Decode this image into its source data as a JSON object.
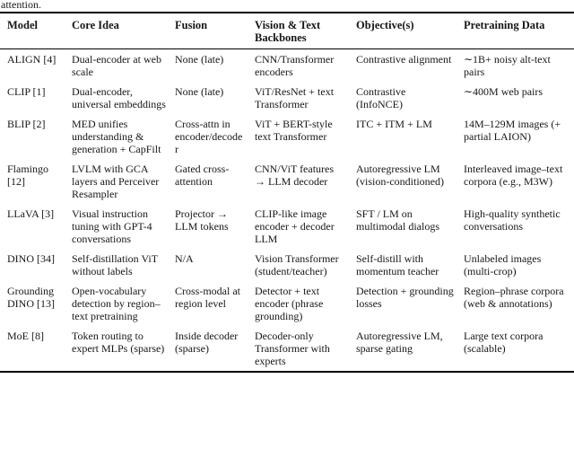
{
  "caption_fragment": "attention.",
  "table": {
    "headers": [
      "Model",
      "Core Idea",
      "Fusion",
      "Vision & Text Backbones",
      "Objective(s)",
      "Pretraining Data"
    ],
    "rows": [
      [
        "ALIGN [4]",
        "Dual-encoder at web scale",
        "None (late)",
        "CNN/Transformer encoders",
        "Contrastive alignment",
        "∼1B+ noisy alt-text pairs"
      ],
      [
        "CLIP [1]",
        "Dual-encoder, universal embeddings",
        "None (late)",
        "ViT/ResNet + text Transformer",
        "Contrastive (InfoNCE)",
        "∼400M web pairs"
      ],
      [
        "BLIP [2]",
        "MED unifies understanding & generation + CapFilt",
        "Cross-attn in encoder/decoder",
        "ViT + BERT-style text Transformer",
        "ITC + ITM + LM",
        "14M–129M images (+ partial LAION)"
      ],
      [
        "Flamingo [12]",
        "LVLM with GCA layers and Perceiver Resampler",
        "Gated cross-attention",
        "CNN/ViT features → LLM decoder",
        "Autoregressive LM (vision-conditioned)",
        "Interleaved image–text corpora (e.g., M3W)"
      ],
      [
        "LLaVA [3]",
        "Visual instruction tuning with GPT-4 conversations",
        "Projector → LLM tokens",
        "CLIP-like image encoder + decoder LLM",
        "SFT / LM on multimodal dialogs",
        "High-quality synthetic conversations"
      ],
      [
        "DINO [34]",
        "Self-distillation ViT without labels",
        "N/A",
        "Vision Transformer (student/teacher)",
        "Self-distill with momentum teacher",
        "Unlabeled images (multi-crop)"
      ],
      [
        "Grounding DINO [13]",
        "Open-vocabulary detection by region–text pretraining",
        "Cross-modal at region level",
        "Detector + text encoder (phrase grounding)",
        "Detection + grounding losses",
        "Region–phrase corpora (web & annotations)"
      ],
      [
        "MoE [8]",
        "Token routing to expert MLPs (sparse)",
        "Inside decoder (sparse)",
        "Decoder-only Transformer with experts",
        "Autoregressive LM, sparse gating",
        "Large text corpora (scalable)"
      ]
    ]
  }
}
